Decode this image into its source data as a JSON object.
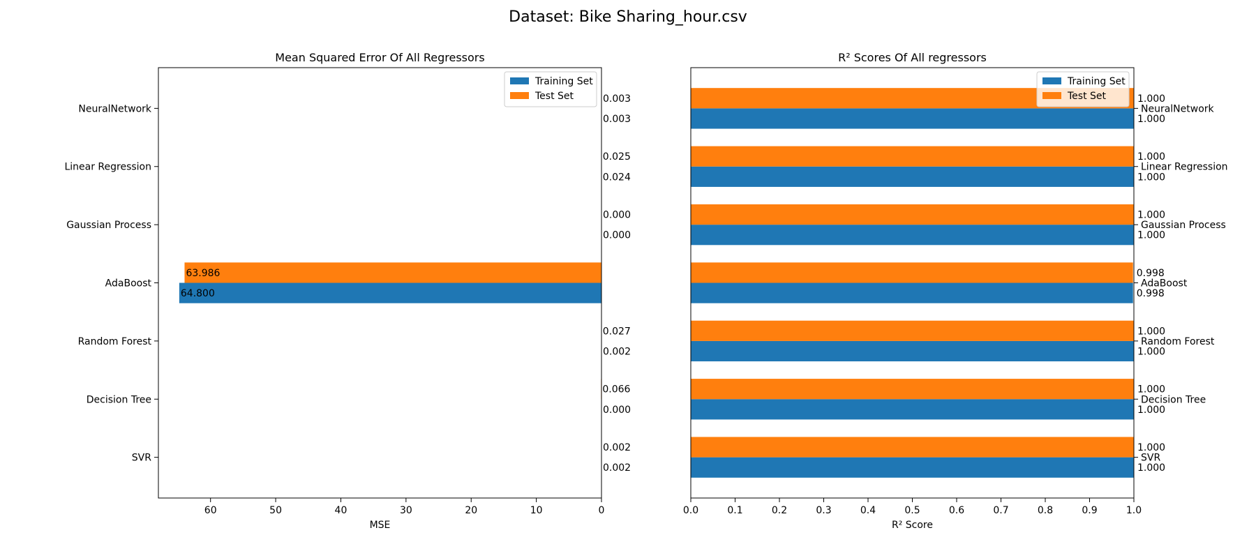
{
  "figure": {
    "title": "Dataset: Bike Sharing_hour.csv"
  },
  "colors": {
    "training": "#1f77b4",
    "test": "#ff7f0e"
  },
  "chart_data": [
    {
      "type": "bar",
      "orientation": "horizontal",
      "x_axis_inverted": true,
      "title": "Mean Squared Error Of All Regressors",
      "xlabel": "MSE",
      "ylabel": "",
      "categories": [
        "SVR",
        "Decision Tree",
        "Random Forest",
        "AdaBoost",
        "Gaussian Process",
        "Linear Regression",
        "NeuralNetwork"
      ],
      "xlim": [
        68,
        0
      ],
      "xticks": [
        60,
        50,
        40,
        30,
        20,
        10,
        0
      ],
      "series": [
        {
          "name": "Training Set",
          "values": [
            0.002,
            0.0,
            0.002,
            64.8,
            0.0,
            0.024,
            0.003
          ],
          "labels": [
            "0.002",
            "0.000",
            "0.002",
            "64.800",
            "0.000",
            "0.024",
            "0.003"
          ]
        },
        {
          "name": "Test Set",
          "values": [
            0.002,
            0.066,
            0.027,
            63.986,
            0.0,
            0.025,
            0.003
          ],
          "labels": [
            "0.002",
            "0.066",
            "0.027",
            "63.986",
            "0.000",
            "0.025",
            "0.003"
          ]
        }
      ],
      "legend": "top-right",
      "grid": false
    },
    {
      "type": "bar",
      "orientation": "horizontal",
      "title": "R² Scores Of All regressors",
      "xlabel": "R² Score",
      "ylabel": "",
      "categories": [
        "SVR",
        "Decision Tree",
        "Random Forest",
        "AdaBoost",
        "Gaussian Process",
        "Linear Regression",
        "NeuralNetwork"
      ],
      "xlim": [
        0,
        1
      ],
      "xticks": [
        "0.0",
        "0.1",
        "0.2",
        "0.3",
        "0.4",
        "0.5",
        "0.6",
        "0.7",
        "0.8",
        "0.9",
        "1.0"
      ],
      "series": [
        {
          "name": "Training Set",
          "values": [
            1.0,
            1.0,
            1.0,
            0.998,
            1.0,
            1.0,
            1.0
          ],
          "labels": [
            "1.000",
            "1.000",
            "1.000",
            "0.998",
            "1.000",
            "1.000",
            "1.000"
          ]
        },
        {
          "name": "Test Set",
          "values": [
            1.0,
            1.0,
            1.0,
            0.998,
            1.0,
            1.0,
            1.0
          ],
          "labels": [
            "1.000",
            "1.000",
            "1.000",
            "0.998",
            "1.000",
            "1.000",
            "1.000"
          ]
        }
      ],
      "legend": "top-right",
      "grid": false
    }
  ]
}
